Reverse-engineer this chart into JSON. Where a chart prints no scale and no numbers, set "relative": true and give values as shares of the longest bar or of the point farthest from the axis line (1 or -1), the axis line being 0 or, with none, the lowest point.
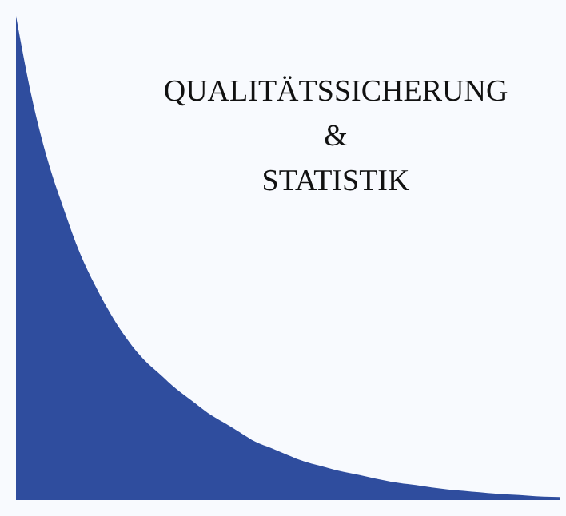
{
  "chart_data": {
    "type": "area",
    "relative": true,
    "title": "QUALITÄTSSICHERUNG\n&\nSTATISTIK",
    "color": "#2f4d9e",
    "categories": [
      null,
      null,
      null,
      null,
      null,
      null,
      null,
      null,
      null,
      null,
      null,
      null,
      null,
      null,
      null,
      null,
      null,
      null,
      null,
      null,
      null,
      null,
      null,
      null,
      null,
      null,
      null,
      null,
      null,
      null,
      null,
      null,
      null,
      null,
      null
    ],
    "values": [
      1.0,
      0.83,
      0.7,
      0.6,
      0.51,
      0.44,
      0.38,
      0.33,
      0.29,
      0.26,
      0.23,
      0.205,
      0.18,
      0.16,
      0.14,
      0.12,
      0.107,
      0.093,
      0.08,
      0.071,
      0.062,
      0.055,
      0.048,
      0.041,
      0.035,
      0.031,
      0.026,
      0.022,
      0.019,
      0.016,
      0.013,
      0.011,
      0.009,
      0.007,
      0.006
    ]
  }
}
